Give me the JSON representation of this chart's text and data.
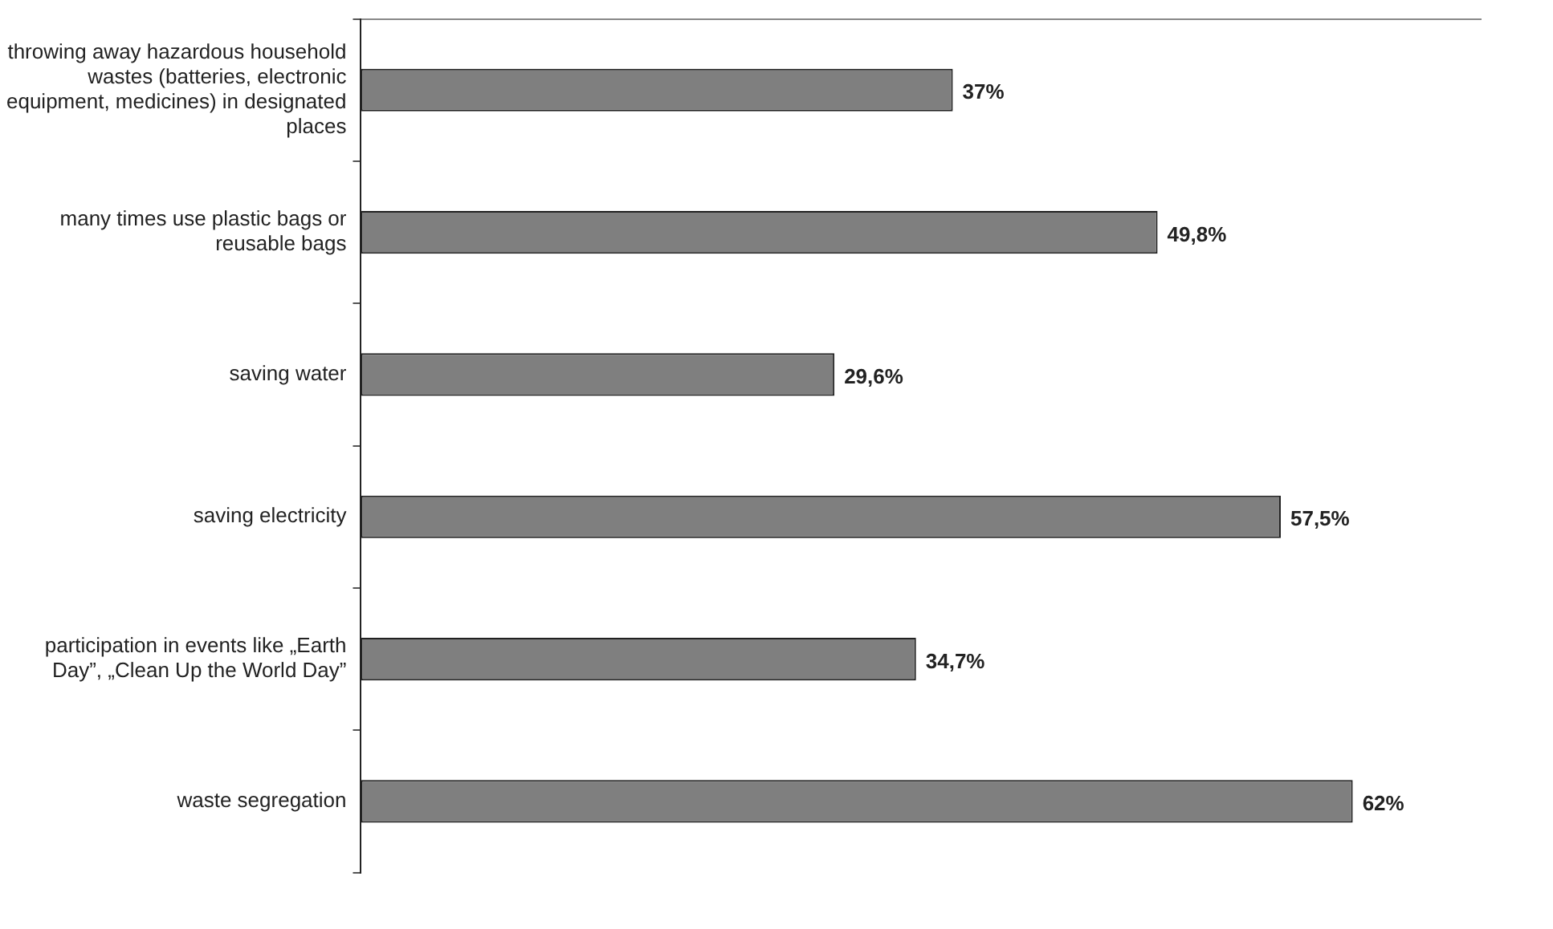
{
  "chart_data": {
    "type": "bar",
    "orientation": "horizontal",
    "categories": [
      "throwing away hazardous household wastes (batteries, electronic equipment, medicines) in designated places",
      "many times use plastic bags or reusable bags",
      "saving water",
      "saving electricity",
      "participation in events like „Earth Day”, „Clean Up the World Day”",
      "waste segregation"
    ],
    "values": [
      37,
      49.8,
      29.6,
      57.5,
      34.7,
      62
    ],
    "value_labels": [
      "37%",
      "49,8%",
      "29,6%",
      "57,5%",
      "34,7%",
      "62%"
    ],
    "color": "#7f7f7f",
    "relative": false,
    "tick_labels": "y",
    "grid": false,
    "legend": false
  }
}
